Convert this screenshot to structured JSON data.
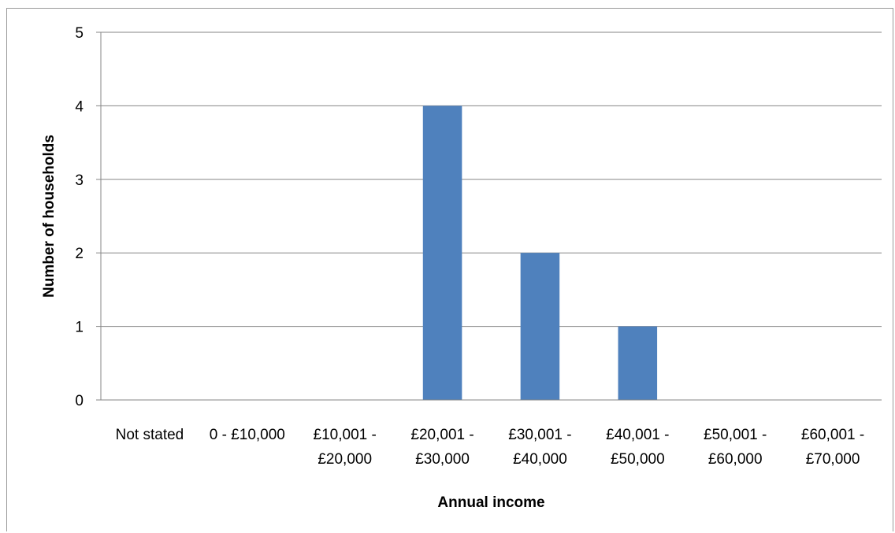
{
  "chart_data": {
    "type": "bar",
    "title": "",
    "xlabel": "Annual income",
    "ylabel": "Number of households",
    "categories": [
      [
        "Not stated"
      ],
      [
        "0 - £10,000"
      ],
      [
        "£10,001 -",
        "£20,000"
      ],
      [
        "£20,001 -",
        "£30,000"
      ],
      [
        "£30,001 -",
        "£40,000"
      ],
      [
        "£40,001 -",
        "£50,000"
      ],
      [
        "£50,001 -",
        "£60,000"
      ],
      [
        "£60,001 -",
        "£70,000"
      ]
    ],
    "values": [
      0,
      0,
      0,
      4,
      2,
      1,
      0,
      0
    ],
    "ylim": [
      0,
      5
    ],
    "yticks": [
      "0",
      "1",
      "2",
      "3",
      "4",
      "5"
    ],
    "grid": true,
    "legend": "none",
    "colors": {
      "bar": "#4f81bd",
      "grid": "#868686",
      "axis": "#868686"
    }
  }
}
